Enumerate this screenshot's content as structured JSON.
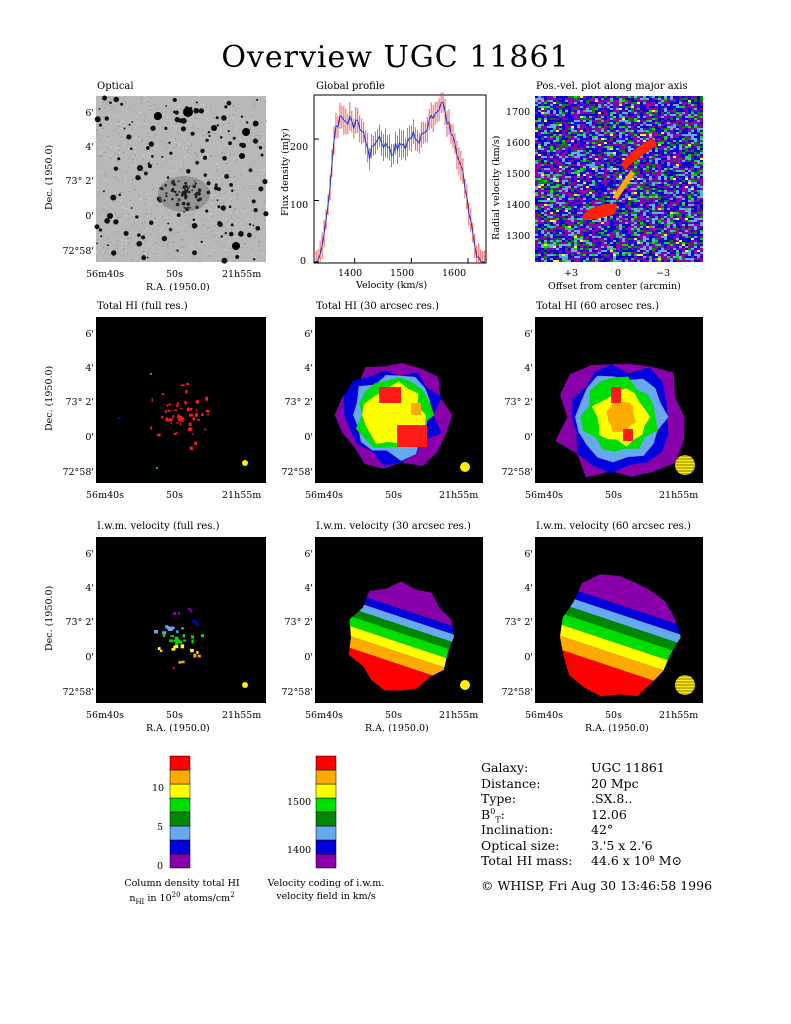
{
  "title": "Overview UGC 11861",
  "panels": {
    "optical": "Optical",
    "profile": "Global profile",
    "pv": "Pos.-vel. plot along major axis",
    "hi_full": "Total HI (full res.)",
    "hi_30": "Total HI (30 arcsec res.)",
    "hi_60": "Total HI (60 arcsec res.)",
    "vel_full": "I.w.m. velocity (full res.)",
    "vel_30": "I.w.m. velocity (30 arcsec res.)",
    "vel_60": "I.w.m. velocity (60 arcsec res.)"
  },
  "axes": {
    "dec_label": "Dec. (1950.0)",
    "ra_label": "R.A. (1950.0)",
    "dec_ticks": [
      "6'",
      "4'",
      "73° 2'",
      "0'",
      "72°58'"
    ],
    "ra_ticks": [
      "56m40s",
      "50s",
      "21h55m"
    ],
    "flux_label": "Flux density (mJy)",
    "velocity_label": "Velocity (km/s)",
    "flux_ticks": [
      "200",
      "100",
      "0"
    ],
    "velocity_ticks": [
      "1400",
      "1500",
      "1600"
    ],
    "rv_label": "Radial velocity (km/s)",
    "rv_ticks": [
      "1700",
      "1600",
      "1500",
      "1400",
      "1300"
    ],
    "offset_label": "Offset from center (arcmin)",
    "offset_ticks": [
      "+3",
      "0",
      "−3"
    ]
  },
  "colorbars": {
    "density_ticks": [
      "10",
      "5",
      "0"
    ],
    "density_caption_1": "Column density total HI",
    "density_caption_2": "nHI in 1020 atoms/cm2",
    "velocity_ticks": [
      "1500",
      "1400"
    ],
    "velocity_caption_1": "Velocity coding of i.w.m.",
    "velocity_caption_2": "velocity field in km/s",
    "colors": [
      "#8800aa",
      "#0000dd",
      "#66aaee",
      "#008800",
      "#00dd00",
      "#ffff00",
      "#ffaa00",
      "#ff0000"
    ]
  },
  "info": {
    "labels": [
      "Galaxy:",
      "Distance:",
      "Type:",
      "B0T:",
      "Inclination:",
      "Optical size:",
      "Total HI mass:"
    ],
    "values": [
      "UGC 11861",
      "20 Mpc",
      ".SX.8..",
      "12.06",
      "42°",
      "3.'5 x 2.'6",
      "44.6 x 10⁸ M⊙"
    ],
    "footer": "© WHISP, Fri Aug 30 13:46:58 1996"
  },
  "chart_data": {
    "type": "line",
    "title": "Global profile",
    "xlabel": "Velocity (km/s)",
    "ylabel": "Flux density (mJy)",
    "xlim": [
      1330,
      1630
    ],
    "ylim": [
      0,
      270
    ],
    "x": [
      1335,
      1345,
      1355,
      1365,
      1375,
      1385,
      1395,
      1405,
      1415,
      1425,
      1435,
      1445,
      1455,
      1465,
      1475,
      1485,
      1495,
      1505,
      1515,
      1525,
      1535,
      1545,
      1555,
      1565,
      1575,
      1585,
      1595,
      1605,
      1615,
      1625
    ],
    "values": [
      0,
      35,
      110,
      205,
      245,
      235,
      228,
      222,
      210,
      170,
      190,
      200,
      185,
      178,
      190,
      185,
      195,
      205,
      200,
      215,
      230,
      245,
      255,
      225,
      195,
      170,
      120,
      60,
      10,
      0
    ]
  }
}
